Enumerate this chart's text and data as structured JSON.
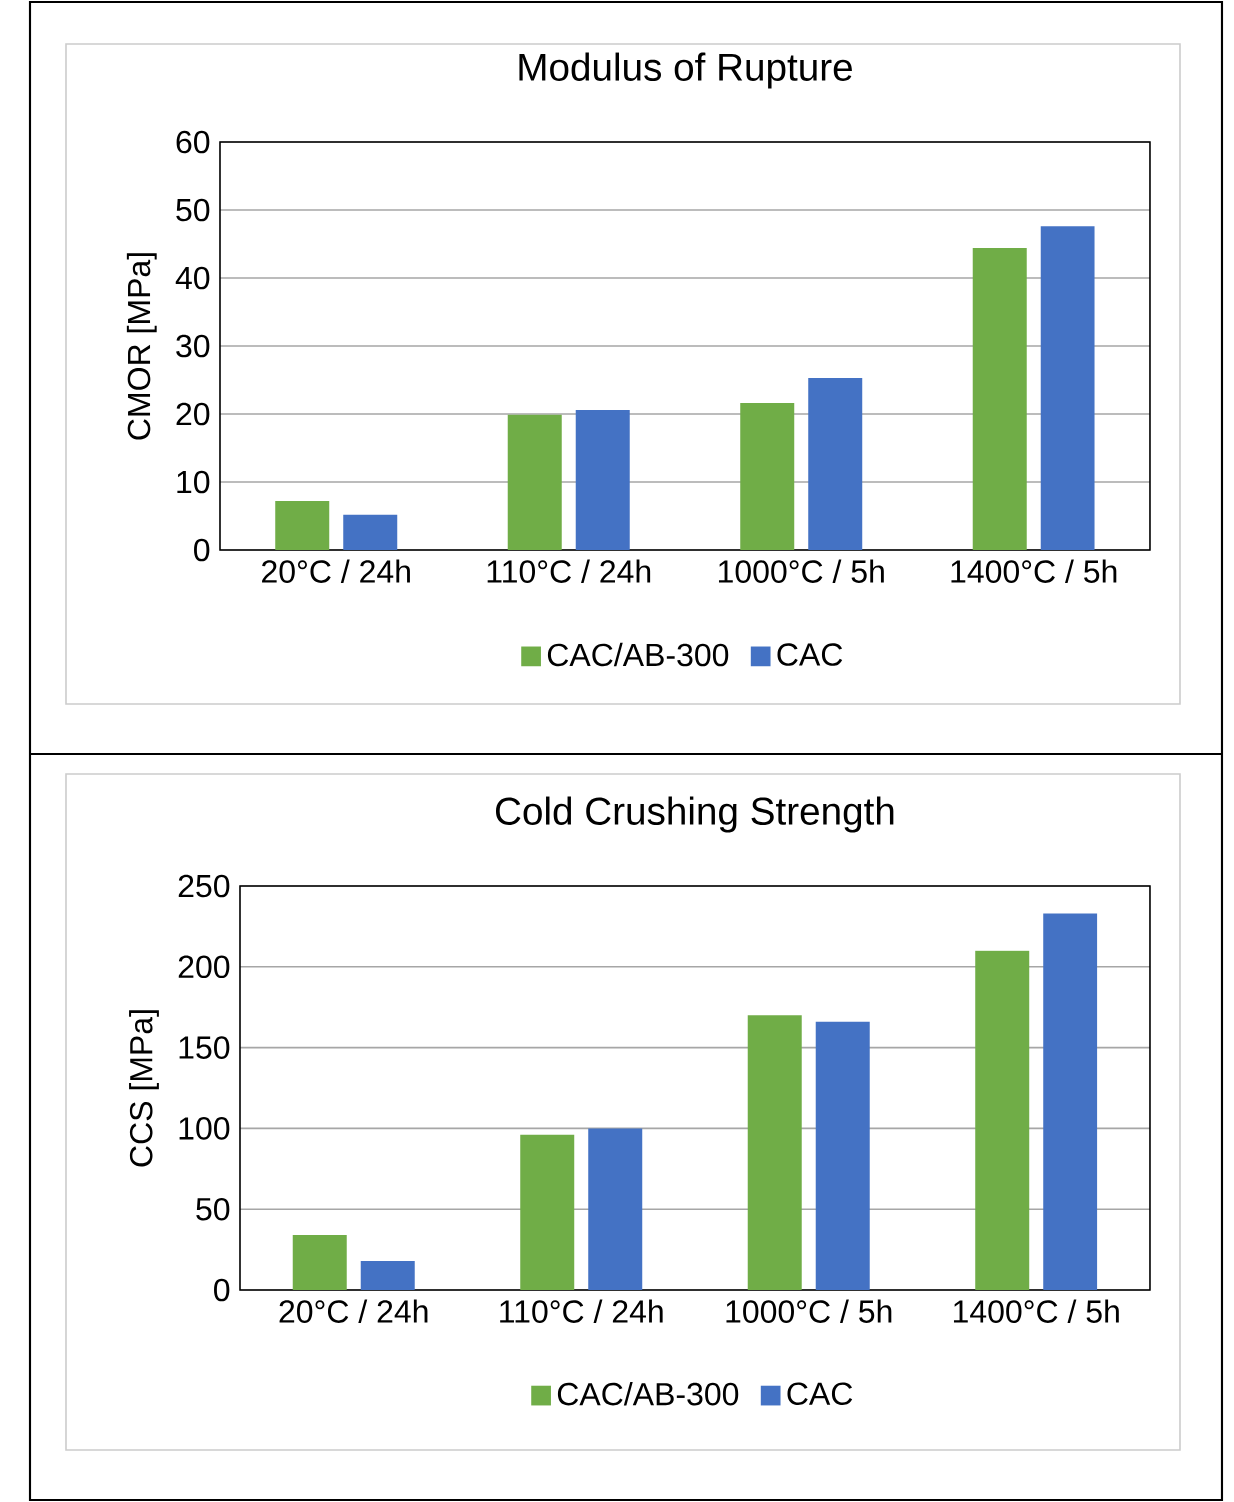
{
  "chart_data": [
    {
      "type": "bar",
      "title": "Modulus of Rupture",
      "ylabel": "CMOR [MPa]",
      "categories": [
        "20°C / 24h",
        "110°C / 24h",
        "1000°C / 5h",
        "1400°C / 5h"
      ],
      "series": [
        {
          "name": "CAC/AB-300",
          "color": "#70ad47",
          "values": [
            7.2,
            19.9,
            21.6,
            44.4
          ]
        },
        {
          "name": "CAC",
          "color": "#4472c4",
          "values": [
            5.2,
            20.6,
            25.3,
            47.6
          ]
        }
      ],
      "ylim": [
        0,
        60
      ],
      "yticks": [
        0,
        10,
        20,
        30,
        40,
        50,
        60
      ],
      "grid": "y",
      "legend": "bottom"
    },
    {
      "type": "bar",
      "title": "Cold Crushing Strength",
      "ylabel": "CCS [MPa]",
      "categories": [
        "20°C / 24h",
        "110°C / 24h",
        "1000°C / 5h",
        "1400°C / 5h"
      ],
      "series": [
        {
          "name": "CAC/AB-300",
          "color": "#70ad47",
          "values": [
            34,
            96,
            170,
            210
          ]
        },
        {
          "name": "CAC",
          "color": "#4472c4",
          "values": [
            18,
            100,
            166,
            233
          ]
        }
      ],
      "ylim": [
        0,
        250
      ],
      "yticks": [
        0,
        50,
        100,
        150,
        200,
        250
      ],
      "grid": "y",
      "legend": "bottom"
    }
  ]
}
